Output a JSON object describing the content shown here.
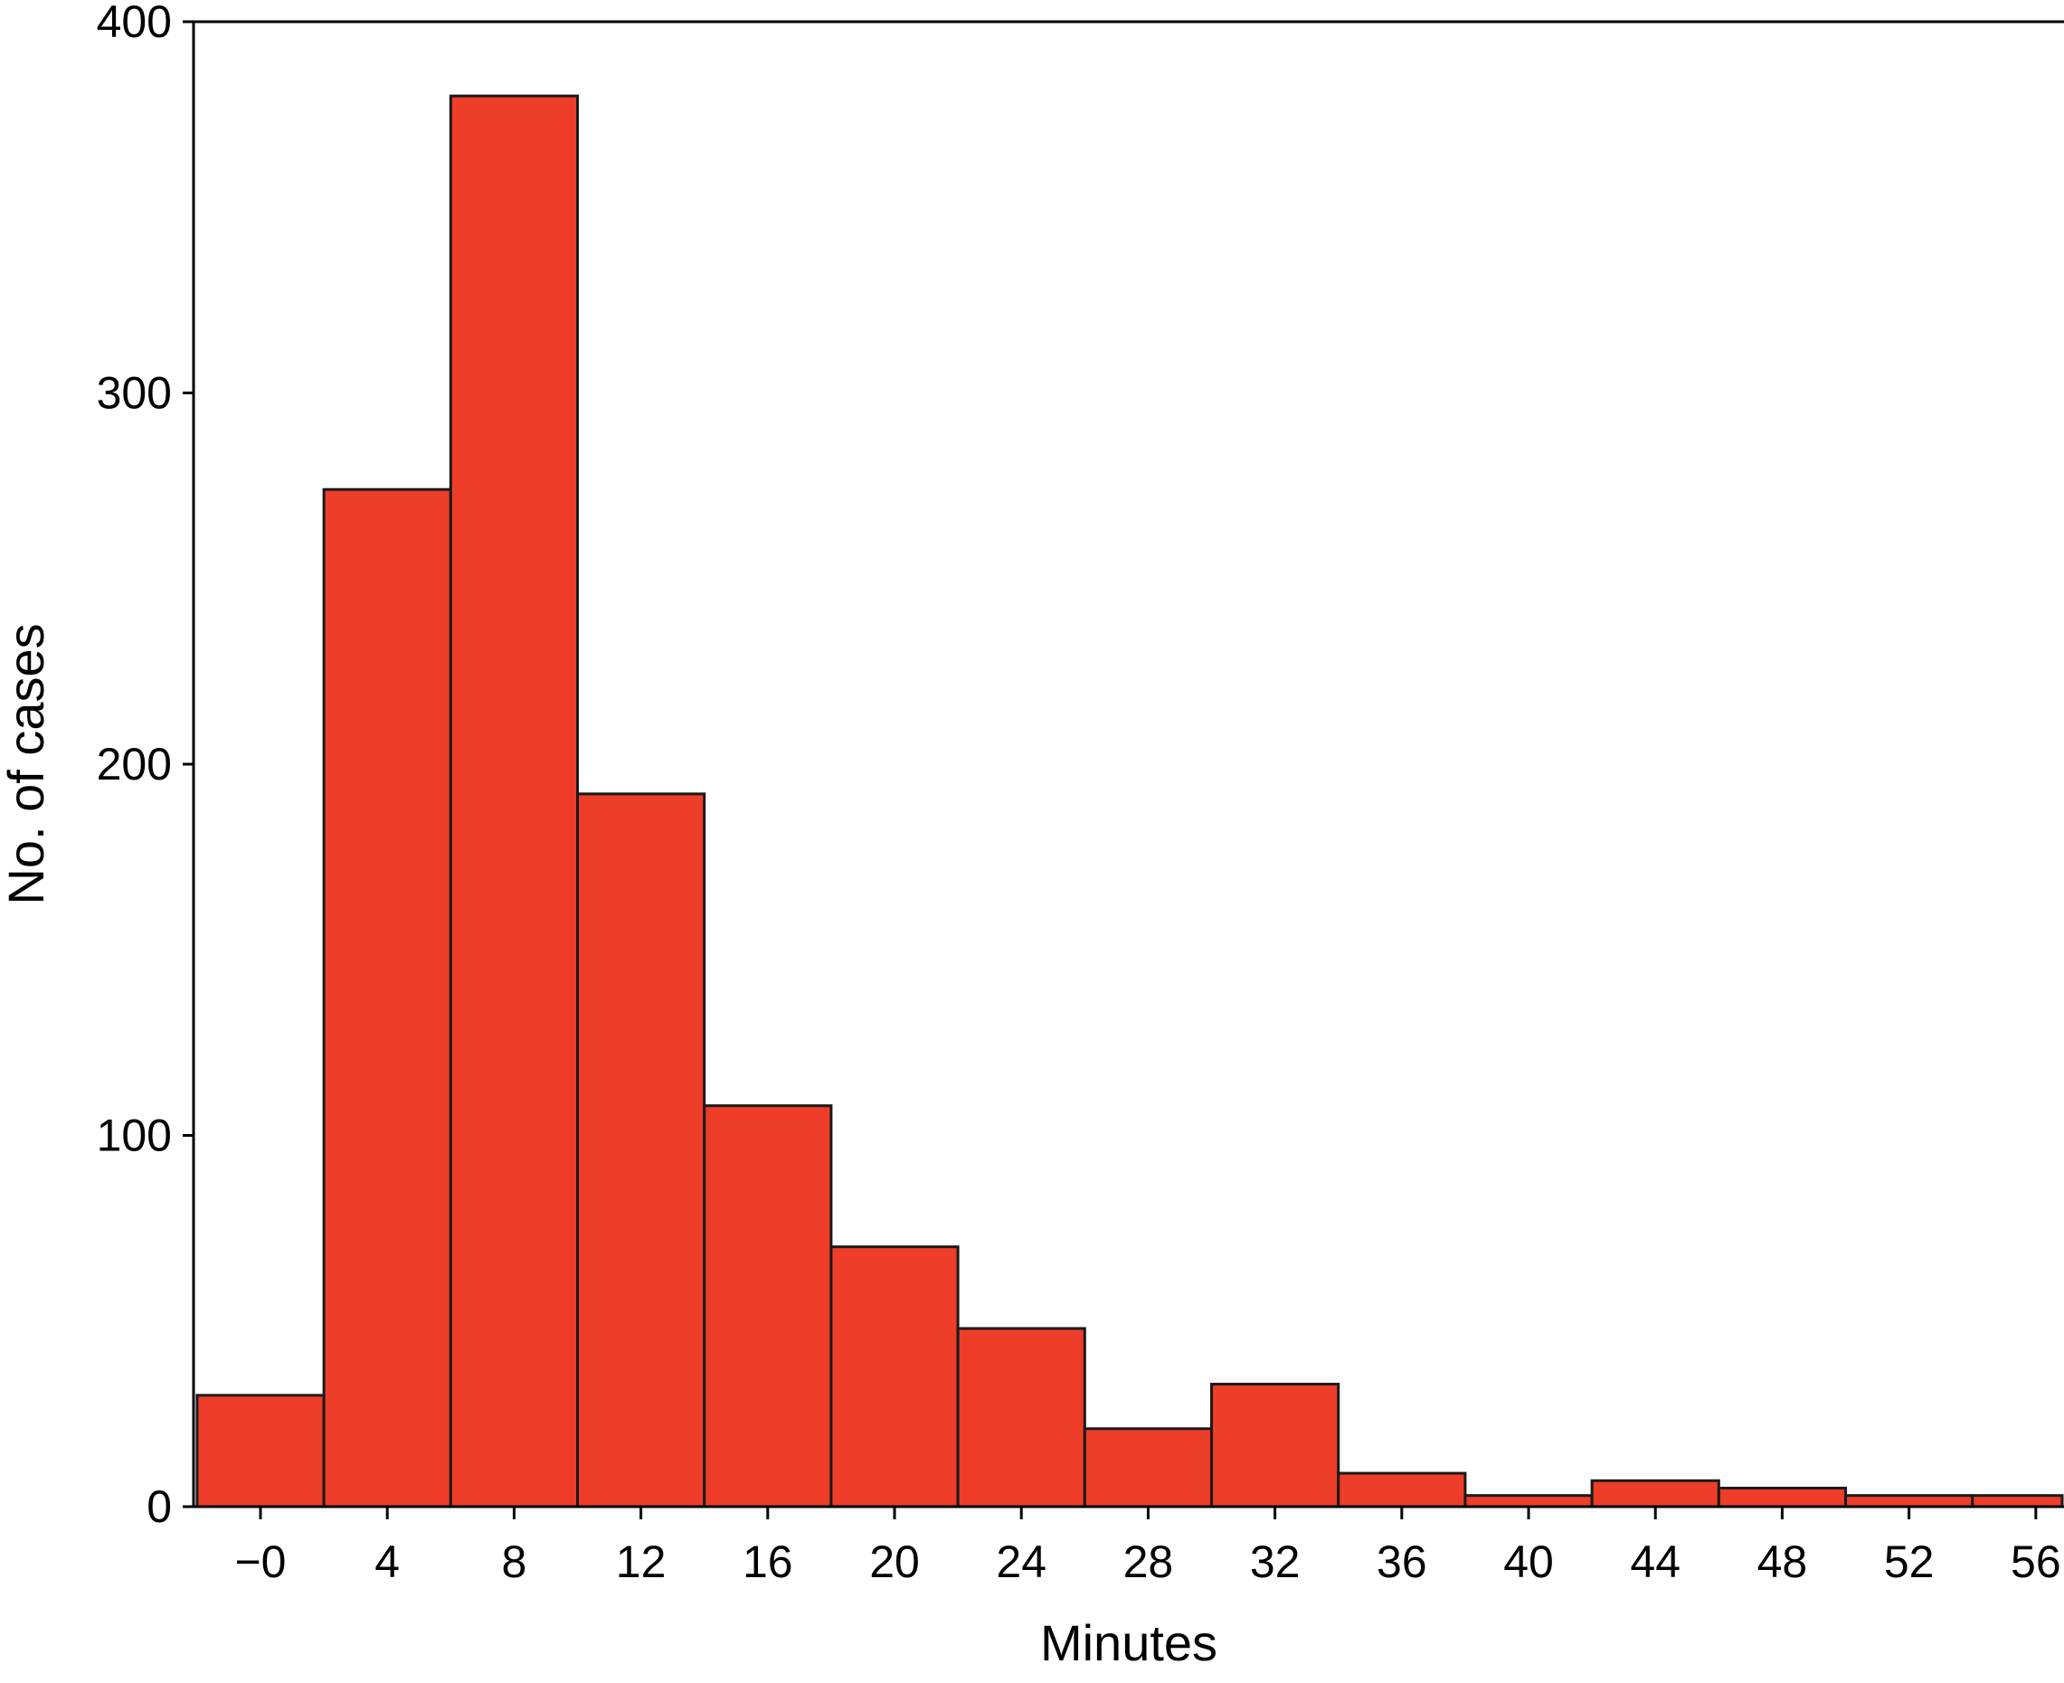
{
  "chart_data": {
    "type": "bar",
    "title": "",
    "xlabel": "Minutes",
    "ylabel": "No. of cases",
    "ylim": [
      0,
      400
    ],
    "yticks": [
      0,
      100,
      200,
      300,
      400
    ],
    "grid": false,
    "bar_color": "#ee3d28",
    "bar_edge_color": "#1a1a1a",
    "categories": [
      "−0",
      "4",
      "8",
      "12",
      "16",
      "20",
      "24",
      "28",
      "32",
      "36",
      "40",
      "44",
      "48",
      "52",
      "56"
    ],
    "values": [
      30,
      274,
      380,
      192,
      108,
      70,
      48,
      21,
      33,
      9,
      3,
      7,
      5,
      3,
      3
    ]
  }
}
